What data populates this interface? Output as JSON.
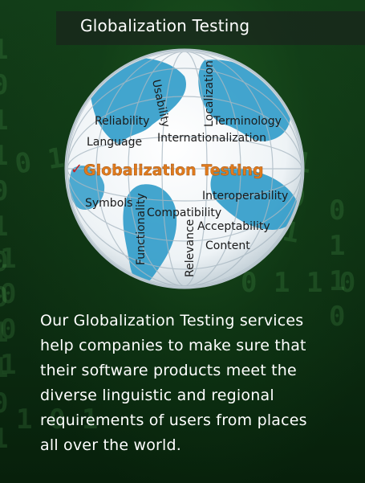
{
  "header": {
    "title": "Globalization Testing"
  },
  "globe": {
    "center_label": "Globalization Testing",
    "terms": {
      "reliability": "Reliability",
      "usability": "Usability",
      "localization": "Localization",
      "terminology": "Terminology",
      "language": "Language",
      "internationalization": "Internationalization",
      "symbols": "Symbols",
      "interoperability": "Interoperability",
      "compatibility": "Compatibility",
      "functionality": "Functionality",
      "acceptability": "Acceptability",
      "relevance": "Relevance",
      "content": "Content"
    },
    "accent_color": "#e07b1d",
    "ocean_color": "#ffffff",
    "land_color": "#2f9bc9"
  },
  "description": {
    "line1": "Our Globalization Testing services",
    "line2": "help companies to make sure that",
    "line3": "their software products meet the",
    "line4": "diverse linguistic and regional",
    "line5": "requirements of users from places",
    "line6": "all over the world."
  }
}
